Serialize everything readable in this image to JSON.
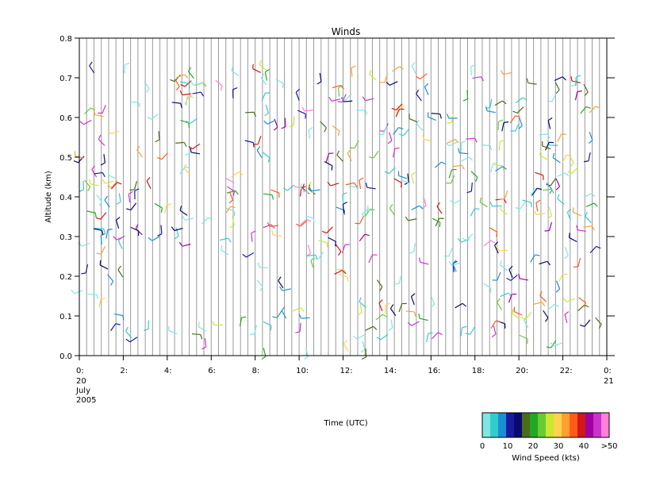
{
  "chart_data": {
    "type": "wind-barb",
    "title": "Winds",
    "xlabel": "Time (UTC)",
    "ylabel": "Altitude (km)",
    "ylim": [
      0.0,
      0.8
    ],
    "xlim": [
      0,
      24
    ],
    "y_ticks": [
      "0.0",
      "0.1",
      "0.2",
      "0.3",
      "0.4",
      "0.5",
      "0.6",
      "0.7",
      "0.8"
    ],
    "x_ticks": [
      "0:",
      "2:",
      "4:",
      "6:",
      "8:",
      "10:",
      "12:",
      "14:",
      "16:",
      "18:",
      "20:",
      "22:",
      "0:"
    ],
    "x_start_date": [
      "20",
      "July",
      "2005"
    ],
    "x_end_date": "21",
    "colorbar": {
      "label": "Wind Speed (kts)",
      "tick_labels": [
        "0",
        "10",
        "20",
        "30",
        "40",
        ">50"
      ],
      "colors": [
        "#7fe6e6",
        "#33cccc",
        "#1a8fd6",
        "#1a1aa0",
        "#0a0a6e",
        "#4a6b1a",
        "#22a822",
        "#66cc33",
        "#cce633",
        "#ffd24d",
        "#ffa030",
        "#ff5a1a",
        "#d01818",
        "#a000a0",
        "#cc33cc",
        "#ff80d5"
      ]
    },
    "barb_count": 400,
    "barb_clusters": [
      {
        "t0": 0.0,
        "t1": 2.0,
        "a0": 0.06,
        "a1": 0.38
      },
      {
        "t0": 2.2,
        "t1": 4.5,
        "a0": 0.01,
        "a1": 0.09
      },
      {
        "t0": 4.8,
        "t1": 8.5,
        "a0": 0.01,
        "a1": 0.09
      },
      {
        "t0": 8.0,
        "t1": 14.0,
        "a0": 0.01,
        "a1": 0.24
      },
      {
        "t0": 14.0,
        "t1": 22.0,
        "a0": 0.03,
        "a1": 0.27
      },
      {
        "t0": 22.0,
        "t1": 23.5,
        "a0": 0.06,
        "a1": 0.34
      },
      {
        "t0": 0.0,
        "t1": 23.5,
        "a0": 0.25,
        "a1": 0.72
      }
    ]
  }
}
